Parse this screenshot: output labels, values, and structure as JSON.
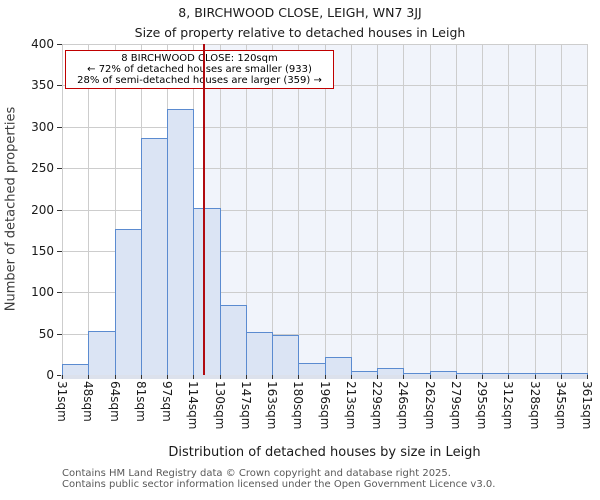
{
  "title": "8, BIRCHWOOD CLOSE, LEIGH, WN7 3JJ",
  "subtitle": "Size of property relative to detached houses in Leigh",
  "annotation": {
    "line1": "8 BIRCHWOOD CLOSE: 120sqm",
    "line2": "← 72% of detached houses are smaller (933)",
    "line3": "28% of semi-detached houses are larger (359) →"
  },
  "chart_data": {
    "type": "bar",
    "title": "8, BIRCHWOOD CLOSE, LEIGH, WN7 3JJ - Size of property relative to detached houses in Leigh",
    "categories": [
      "31sqm",
      "48sqm",
      "64sqm",
      "81sqm",
      "97sqm",
      "114sqm",
      "130sqm",
      "147sqm",
      "163sqm",
      "180sqm",
      "196sqm",
      "213sqm",
      "229sqm",
      "246sqm",
      "262sqm",
      "279sqm",
      "295sqm",
      "312sqm",
      "328sqm",
      "345sqm",
      "361sqm"
    ],
    "values": [
      13,
      53,
      177,
      287,
      322,
      202,
      84,
      52,
      48,
      14,
      22,
      5,
      8,
      2,
      5,
      3,
      3,
      1,
      1,
      1
    ],
    "xlabel": "Distribution of detached houses by size in Leigh",
    "ylabel": "Number of detached properties",
    "ylim": [
      0,
      400
    ],
    "yticks": [
      0,
      50,
      100,
      150,
      200,
      250,
      300,
      350,
      400
    ],
    "x_range": [
      31,
      361
    ],
    "marker_sqm": 120,
    "grid": true,
    "legend": "none",
    "colors": {
      "bar_fill": "#dbe4f4",
      "bar_stroke": "#5b8bd0",
      "marker_line": "#b00b10",
      "annotation_border": "#c00000",
      "shade_right_of_marker": "#f1f4fb",
      "gridline": "#cdcdcd"
    }
  },
  "footer": {
    "line1": "Contains HM Land Registry data © Crown copyright and database right 2025.",
    "line2": "Contains public sector information licensed under the Open Government Licence v3.0."
  }
}
